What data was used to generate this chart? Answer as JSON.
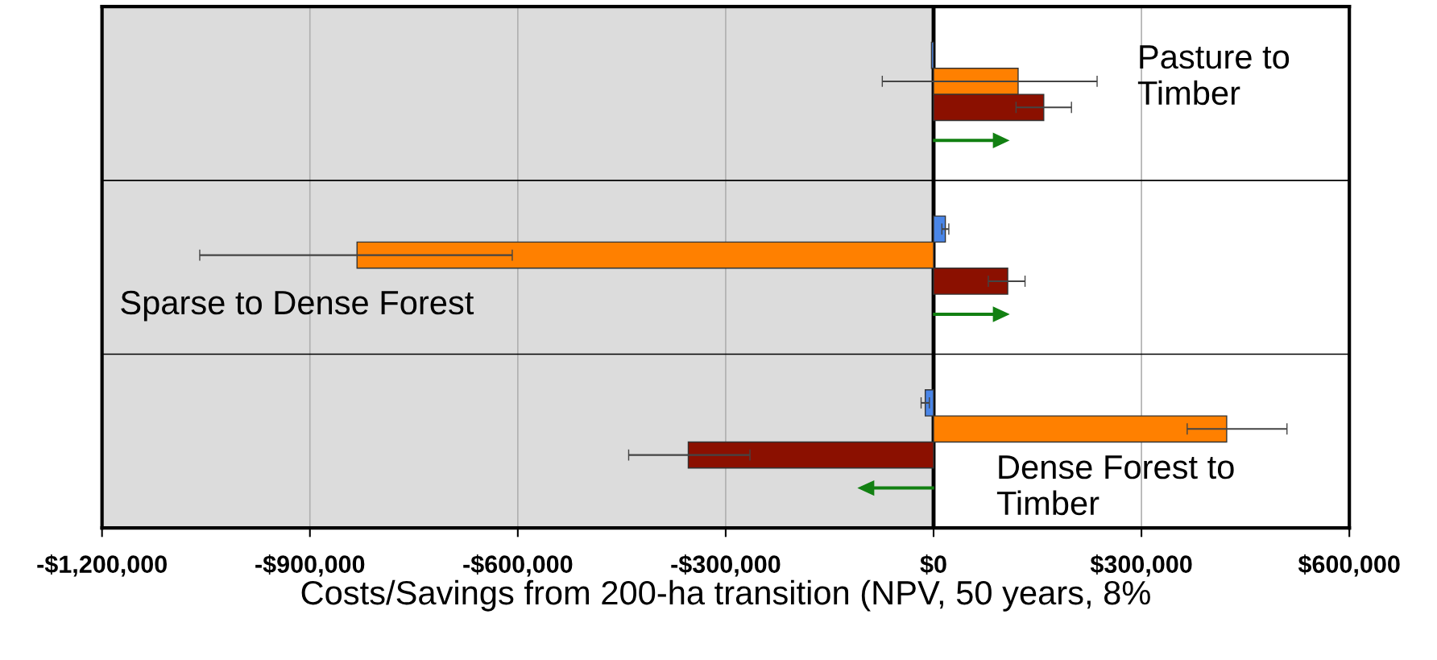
{
  "chart_data": {
    "type": "bar",
    "orientation": "horizontal",
    "categories": [
      null,
      null,
      null
    ],
    "series": [
      {
        "color": "#4a86e8",
        "values": [
          -3000,
          17000,
          -12000
        ],
        "errors": [
          null,
          [
            12000,
            22000
          ],
          [
            -18000,
            -6000
          ]
        ]
      },
      {
        "color": "#ff8000",
        "values": [
          122000,
          -832000,
          423000
        ],
        "errors": [
          [
            -74000,
            236000
          ],
          [
            -1059000,
            -608000
          ],
          [
            366000,
            510000
          ]
        ]
      },
      {
        "color": "#8b1000",
        "values": [
          159000,
          107000,
          -354000
        ],
        "errors": [
          [
            119000,
            199000
          ],
          [
            79000,
            132000
          ],
          [
            -440000,
            -265000
          ]
        ]
      }
    ],
    "xlim": [
      -1200000,
      600000
    ],
    "xticks": [
      {
        "value": -1200000,
        "label": "-$1,200,000"
      },
      {
        "value": -900000,
        "label": "-$900,000"
      },
      {
        "value": -600000,
        "label": "-$600,000"
      },
      {
        "value": -300000,
        "label": "-$300,000"
      },
      {
        "value": 0,
        "label": "$0"
      },
      {
        "value": 300000,
        "label": "$300,000"
      },
      {
        "value": 600000,
        "label": "$600,000"
      }
    ],
    "xlabel": "Costs/Savings from 200-ha transition (NPV, 50 years, 8%",
    "bands": [
      {
        "axis": "x",
        "from": -1200000,
        "to": 0,
        "color": "#dcdcdc"
      }
    ],
    "ref_lines": [
      {
        "axis": "x",
        "value": 0,
        "color": "#000000"
      }
    ],
    "annotations": [
      "Pasture to\nTimber",
      "Sparse to Dense Forest",
      "Dense Forest to\nTimber"
    ],
    "grid": true
  }
}
